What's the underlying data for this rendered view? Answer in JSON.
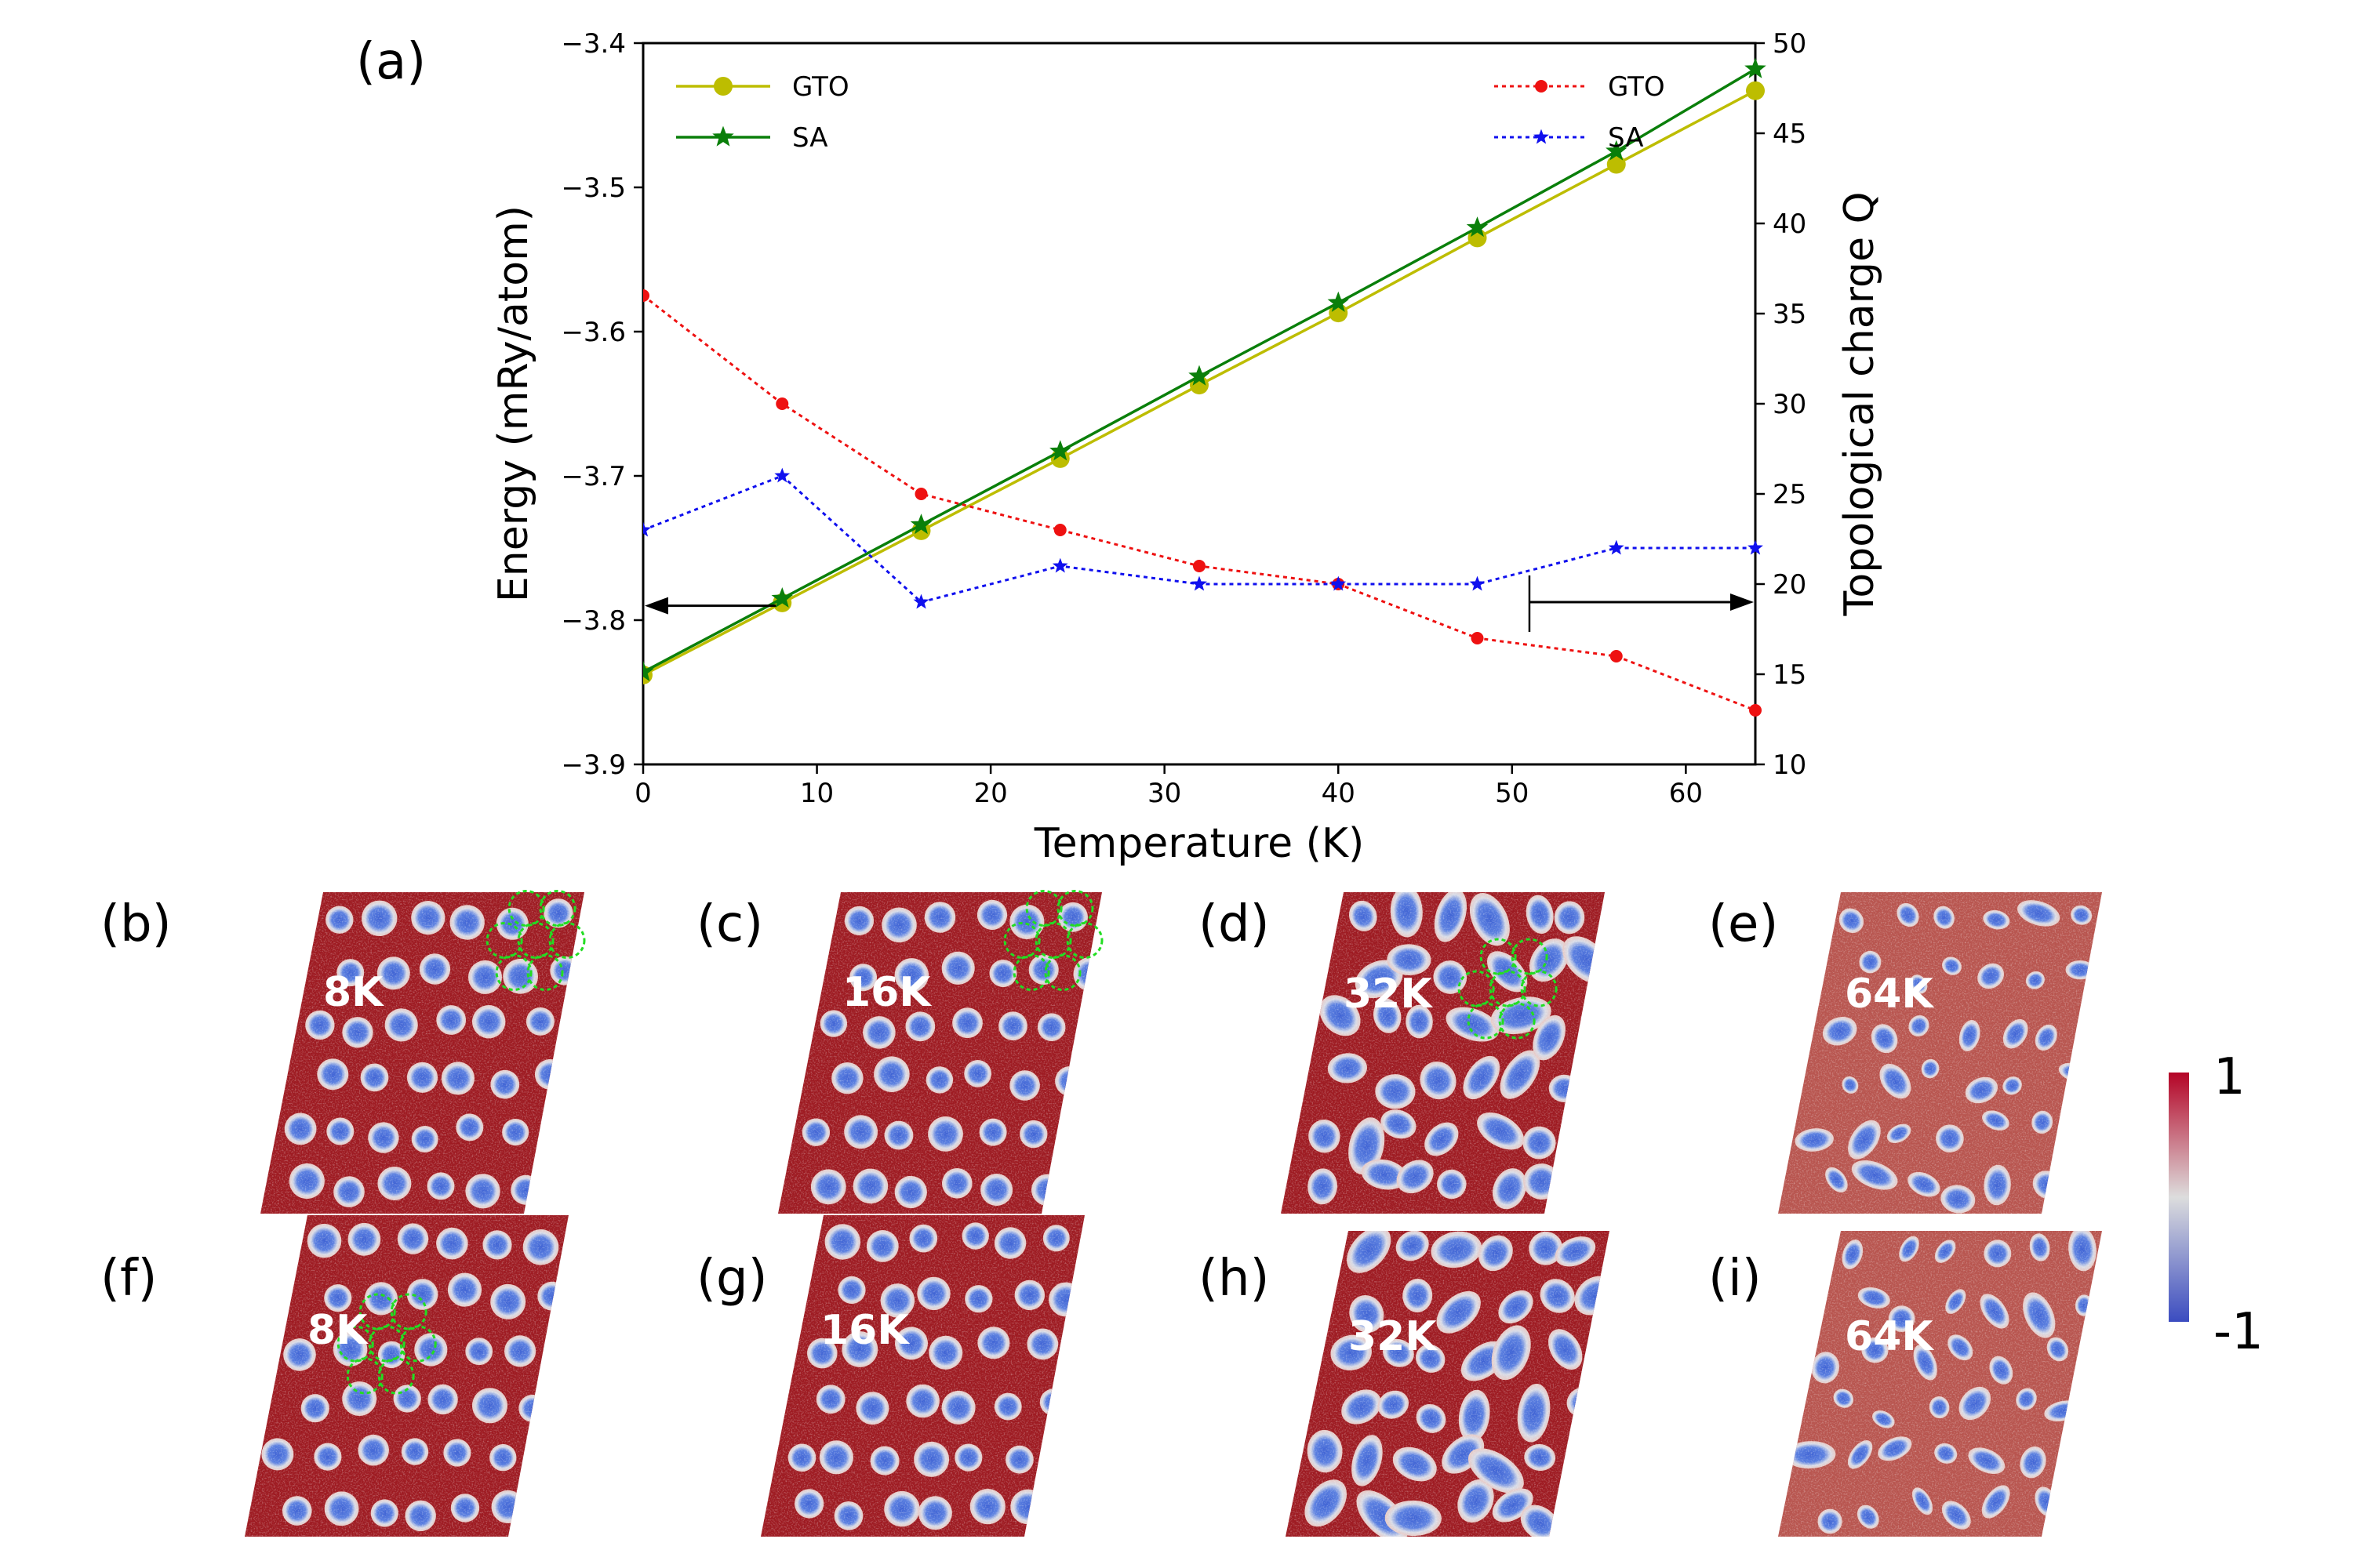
{
  "chart_data": {
    "type": "line",
    "panel_label": "(a)",
    "xlabel": "Temperature (K)",
    "ylabel_left": "Energy (mRy/atom)",
    "ylabel_right": "Topological charge Q",
    "xlim": [
      0,
      64
    ],
    "ylim_left": [
      -3.9,
      -3.4
    ],
    "ylim_right": [
      10,
      50
    ],
    "xticks": [
      0,
      10,
      20,
      30,
      40,
      50,
      60
    ],
    "xtick_labels": [
      "0",
      "10",
      "20",
      "30",
      "40",
      "50",
      "60"
    ],
    "yticks_left": [
      -3.4,
      -3.5,
      -3.6,
      -3.7,
      -3.8,
      -3.9
    ],
    "ytick_labels_left": [
      "−3.4",
      "−3.5",
      "−3.6",
      "−3.7",
      "−3.8",
      "−3.9"
    ],
    "yticks_right": [
      50,
      45,
      40,
      35,
      30,
      25,
      20,
      15,
      10
    ],
    "ytick_labels_right": [
      "50",
      "45",
      "40",
      "35",
      "30",
      "25",
      "20",
      "15",
      "10"
    ],
    "x": [
      0,
      8,
      16,
      24,
      32,
      40,
      48,
      56,
      64
    ],
    "series": [
      {
        "name": "GTO",
        "axis": "left",
        "color": "#bdbd00",
        "marker": "circle",
        "style": "solid",
        "values": [
          -3.838,
          -3.788,
          -3.738,
          -3.688,
          -3.637,
          -3.587,
          -3.535,
          -3.484,
          -3.433
        ]
      },
      {
        "name": "SA",
        "axis": "left",
        "color": "#0a7f0a",
        "marker": "star",
        "style": "solid",
        "values": [
          -3.836,
          -3.785,
          -3.734,
          -3.683,
          -3.631,
          -3.58,
          -3.528,
          -3.475,
          -3.418
        ]
      },
      {
        "name": "GTO",
        "axis": "right",
        "color": "#ee1111",
        "marker": "dot",
        "style": "dotted",
        "values": [
          36,
          30,
          25,
          23,
          21,
          20,
          17,
          16,
          13
        ]
      },
      {
        "name": "SA",
        "axis": "right",
        "color": "#1010ee",
        "marker": "star",
        "style": "dotted",
        "values": [
          23,
          26,
          19,
          21,
          20,
          20,
          20,
          22,
          22
        ]
      }
    ],
    "legend_left": [
      "GTO",
      "SA"
    ],
    "legend_right": [
      "GTO",
      "SA"
    ],
    "legend_left_position": "top-left",
    "legend_right_position": "top-right",
    "arrows": [
      {
        "points_to": "left",
        "at_x": 8,
        "at_y_left": -3.79
      },
      {
        "points_to": "right",
        "from_x": 51,
        "at_y_right": 19
      }
    ]
  },
  "panels": [
    {
      "label": "(b)",
      "temp": "8K"
    },
    {
      "label": "(c)",
      "temp": "16K"
    },
    {
      "label": "(d)",
      "temp": "32K"
    },
    {
      "label": "(e)",
      "temp": "64K"
    },
    {
      "label": "(f)",
      "temp": "8K"
    },
    {
      "label": "(g)",
      "temp": "16K"
    },
    {
      "label": "(h)",
      "temp": "32K"
    },
    {
      "label": "(i)",
      "temp": "64K"
    }
  ],
  "colorbar": {
    "max_label": "1",
    "min_label": "-1",
    "colors": [
      "#3b4cc0",
      "#dddddd",
      "#b40426"
    ]
  },
  "colors": {
    "circle_outline": "#22dd22",
    "skyrmion": "#4a6fd8",
    "background_spin": "#9e1b22"
  }
}
